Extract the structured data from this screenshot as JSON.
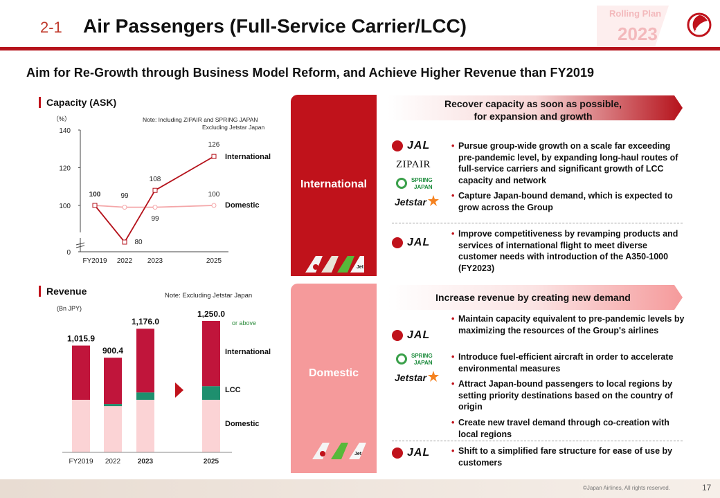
{
  "header": {
    "section_number": "2-1",
    "title": "Air Passengers (Full-Service Carrier/LCC)",
    "plan_label": "Rolling Plan",
    "plan_year": "2023",
    "brand": "JAL"
  },
  "subtitle": "Aim for Re-Growth through Business Model Reform, and Achieve Higher Revenue than FY2019",
  "capacity": {
    "title": "Capacity (ASK)",
    "unit": "（%）",
    "note_line1": "Note: Including ZIPAIR and SPRING JAPAN",
    "note_line2": "Excluding Jetstar Japan"
  },
  "revenue": {
    "title": "Revenue",
    "unit": "(Bn JPY)",
    "note": "Note: Excluding Jetstar Japan",
    "or_above": "or above"
  },
  "chart_data": [
    {
      "type": "line",
      "x": [
        "FY2019",
        "2022",
        "2023",
        "2025"
      ],
      "ylim": [
        0,
        140
      ],
      "yticks": [
        0,
        100,
        120,
        140
      ],
      "axis_break": true,
      "series": [
        {
          "name": "International",
          "values": [
            100,
            80,
            108,
            126
          ],
          "labels": [
            "100",
            "80",
            "108",
            "126"
          ],
          "color": "#b5121b"
        },
        {
          "name": "Domestic",
          "values": [
            100,
            99,
            99,
            100
          ],
          "labels": [
            "100",
            "99",
            "99",
            "100"
          ],
          "color": "#f4a6a8"
        }
      ]
    },
    {
      "type": "bar",
      "stacked": true,
      "categories": [
        "FY2019",
        "2022",
        "2023",
        "2025"
      ],
      "totals": [
        "1,015.9",
        "900.4",
        "1,176.0",
        "1,250.0"
      ],
      "total_values": [
        1015.9,
        900.4,
        1176.0,
        1250.0
      ],
      "series": [
        {
          "name": "Domestic",
          "color": "#fbd3d5",
          "values": [
            500,
            440,
            500,
            500
          ]
        },
        {
          "name": "LCC",
          "color": "#1e8f6e",
          "values": [
            0,
            20,
            70,
            130
          ]
        },
        {
          "name": "International",
          "color": "#c0153b",
          "values": [
            515.9,
            440.4,
            606,
            620
          ]
        }
      ]
    }
  ],
  "international": {
    "label": "International",
    "banner_line1": "Recover capacity as soon as possible,",
    "banner_line2": "for expansion and growth",
    "bullets_group": [
      "Pursue group-wide growth on a scale far exceeding pre-pandemic level, by expanding long-haul routes of full-service carriers and significant growth of LCC capacity and network",
      "Capture Japan-bound demand, which is expected to grow across the Group"
    ],
    "bullets_jal": [
      "Improve competitiveness by revamping products and services of international flight to meet diverse customer needs with introduction of the A350-1000 (FY2023)"
    ]
  },
  "domestic": {
    "label": "Domestic",
    "banner": "Increase revenue by creating new demand",
    "bullets_group": [
      "Maintain capacity equivalent to pre-pandemic levels by maximizing the resources of the Group's airlines",
      "Introduce fuel-efficient aircraft in order to accelerate environmental measures",
      "Attract Japan-bound passengers to local regions by setting priority destinations based on the country of origin",
      "Create new travel demand through co-creation with local regions"
    ],
    "bullets_jal": [
      "Shift to a simplified fare structure for ease of use by customers"
    ]
  },
  "logos": {
    "jal": "JAL",
    "zipair": "ZIPAIR",
    "spring_line1": "SPRING",
    "spring_line2": "JAPAN",
    "jetstar": "Jetstar",
    "jetstar_tail": "Jet"
  },
  "footer": {
    "copyright": "©Japan Airlines, All rights reserved.",
    "page": "17"
  },
  "colors": {
    "brand_red": "#c0121b",
    "domestic_pink": "#f59a9b",
    "lcc_green": "#1e8f6e"
  }
}
